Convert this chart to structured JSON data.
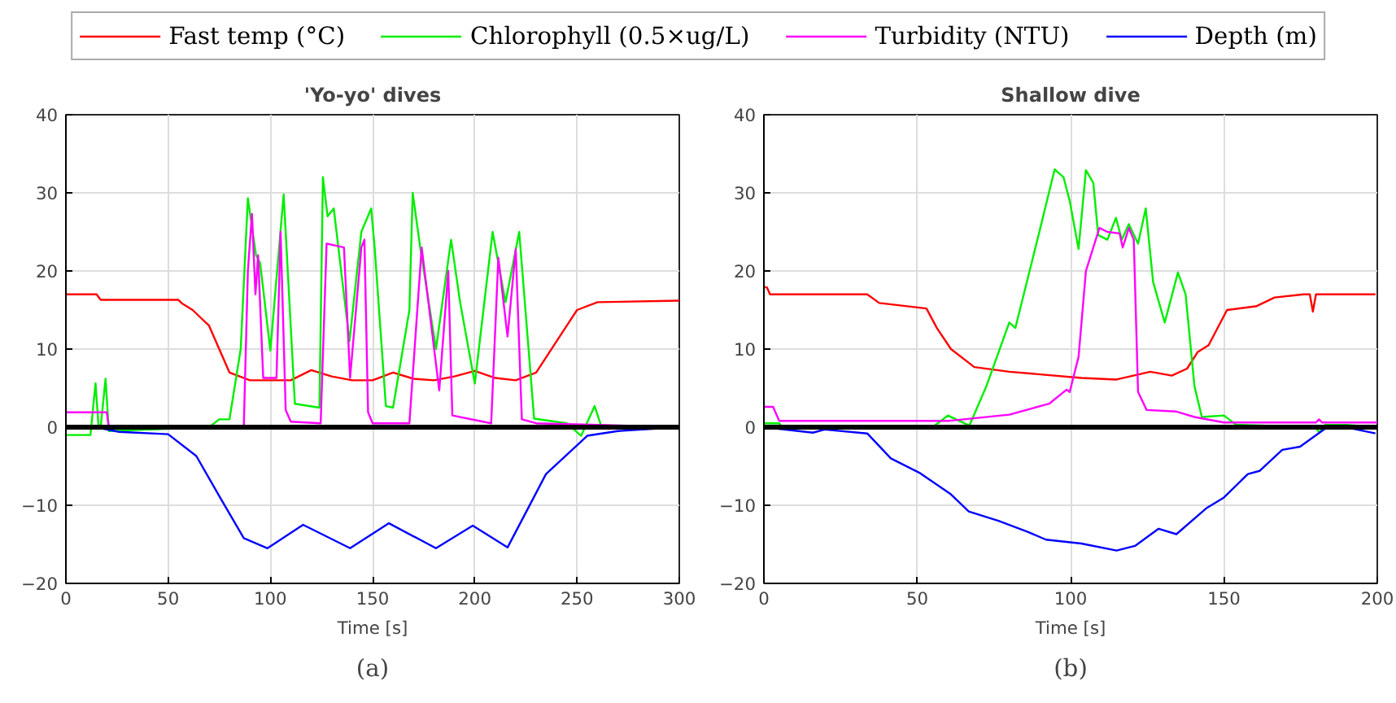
{
  "chart_data": [
    {
      "type": "line",
      "title": "'Yo-yo' dives",
      "xlabel": "Time [s]",
      "xlim": [
        0,
        300
      ],
      "xticks": [
        0,
        50,
        100,
        150,
        200,
        250,
        300
      ],
      "ylim": [
        -20,
        40
      ],
      "yticks": [
        -20,
        -10,
        0,
        10,
        20,
        30,
        40
      ],
      "grid": true,
      "legend": "top",
      "line_style": "solid",
      "annotations": [
        "(a)"
      ],
      "ref_lines": [
        {
          "axis": "y",
          "value": 0,
          "color": "#000000"
        }
      ],
      "series": [
        {
          "name": "Fast temp (°C)",
          "color": "#ff0000",
          "x": [
            0,
            15,
            17,
            55,
            57,
            62,
            70,
            75,
            80,
            85,
            90,
            100,
            110,
            120,
            130,
            140,
            150,
            160,
            170,
            180,
            190,
            200,
            210,
            220,
            230,
            235,
            240,
            245,
            250,
            260,
            300
          ],
          "values": [
            17,
            17,
            16.3,
            16.3,
            15.8,
            15,
            13,
            10,
            7,
            6.5,
            6,
            6,
            6,
            7.3,
            6.5,
            6,
            6,
            7,
            6.2,
            6,
            6.5,
            7.2,
            6.3,
            6,
            7,
            9,
            11,
            13,
            15,
            16,
            16.2
          ]
        },
        {
          "name": "Chlorophyll (0.5×ug/L)",
          "color": "#00ee00",
          "x": [
            0,
            12,
            14.5,
            16,
            17,
            19.4,
            21,
            70,
            75,
            80,
            85.5,
            89,
            93,
            95,
            100,
            106.5,
            112,
            124,
            125.7,
            128,
            131,
            138.7,
            144.5,
            149.3,
            151,
            156.5,
            160,
            168,
            169.6,
            173.3,
            181,
            188.4,
            192.8,
            200,
            208.7,
            215,
            221.7,
            229,
            245,
            252,
            258.6,
            262,
            300
          ],
          "values": [
            -1,
            -1,
            5.6,
            0,
            0,
            6.2,
            -0.5,
            0,
            1,
            1,
            10,
            29.3,
            22,
            21,
            9.8,
            29.8,
            3,
            2.5,
            32,
            27,
            28,
            11,
            25,
            28,
            23,
            2.7,
            2.5,
            15,
            30,
            23,
            10,
            24,
            16,
            5.6,
            25,
            16,
            25,
            1.1,
            0.5,
            -1.1,
            2.7,
            0,
            0
          ]
        },
        {
          "name": "Turbidity (NTU)",
          "color": "#ff00ff",
          "x": [
            0,
            20,
            21,
            87,
            89,
            91,
            92.7,
            94,
            96.5,
            103,
            105,
            107.5,
            110,
            124.6,
            127.5,
            136,
            139,
            144.5,
            146,
            147.8,
            150,
            168,
            174,
            182.6,
            187,
            189,
            208,
            211.5,
            216,
            220,
            223,
            230,
            300
          ],
          "values": [
            1.9,
            1.9,
            0,
            0,
            20,
            27.3,
            17,
            22,
            6.3,
            6.3,
            25,
            2.2,
            0.7,
            0.5,
            23.5,
            23,
            6.3,
            23,
            24,
            1.9,
            0.5,
            0.5,
            23,
            4.7,
            20,
            1.5,
            0.5,
            21.7,
            11.6,
            22.8,
            1,
            0.5,
            0
          ]
        },
        {
          "name": "Depth (m)",
          "color": "#0000ff",
          "x": [
            14.5,
            26,
            50,
            63.8,
            75.4,
            87,
            98.6,
            116,
            139,
            158,
            181,
            199,
            216,
            234.8,
            255,
            270,
            300
          ],
          "values": [
            0,
            -0.6,
            -0.9,
            -3.7,
            -9,
            -14.2,
            -15.5,
            -12.5,
            -15.5,
            -12.3,
            -15.5,
            -12.6,
            -15.4,
            -6,
            -1.1,
            -0.5,
            0
          ]
        }
      ]
    },
    {
      "type": "line",
      "title": "Shallow dive",
      "xlabel": "Time [s]",
      "xlim": [
        0,
        200
      ],
      "xticks": [
        0,
        50,
        100,
        150,
        200
      ],
      "ylim": [
        -20,
        40
      ],
      "yticks": [
        -20,
        -10,
        0,
        10,
        20,
        30,
        40
      ],
      "grid": true,
      "line_style": "solid",
      "annotations": [
        "(b)"
      ],
      "ref_lines": [
        {
          "axis": "y",
          "value": 0,
          "color": "#000000"
        }
      ],
      "series": [
        {
          "color": "#ff0000",
          "x": [
            0,
            1,
            2,
            33.7,
            37.6,
            53,
            56.4,
            61,
            68.6,
            80,
            103.5,
            115,
            126,
            133,
            138,
            141.4,
            145,
            151,
            160.7,
            166.5,
            176,
            178,
            179,
            180,
            181,
            199.4
          ],
          "values": [
            17.9,
            17.9,
            17,
            17,
            15.9,
            15.2,
            12.7,
            10,
            7.7,
            7.1,
            6.3,
            6.1,
            7.1,
            6.6,
            7.5,
            9.6,
            10.5,
            15,
            15.5,
            16.6,
            17,
            17,
            14.8,
            17,
            17,
            17
          ]
        },
        {
          "color": "#00ee00",
          "x": [
            0,
            5,
            6,
            55,
            60,
            67,
            72.5,
            80,
            82,
            90,
            94.8,
            97.7,
            99.7,
            102.6,
            105,
            107.4,
            109,
            112,
            114.8,
            116.7,
            119,
            122,
            124.5,
            126.9,
            130.7,
            135,
            137.5,
            140.4,
            142.8,
            150,
            154,
            180,
            181,
            183,
            190,
            200
          ],
          "values": [
            0.5,
            0.5,
            0,
            0,
            1.5,
            0.2,
            5.2,
            13.4,
            12.7,
            25.3,
            33,
            32,
            29,
            22.8,
            32.9,
            31.3,
            24.6,
            24,
            26.8,
            24,
            26,
            23.5,
            28,
            18.6,
            13.4,
            19.8,
            17,
            5.2,
            1.3,
            1.5,
            0.3,
            0,
            -0.7,
            0.3,
            0.3,
            0
          ]
        },
        {
          "color": "#ff00ff",
          "x": [
            0,
            3,
            5,
            60,
            80,
            93,
            98.7,
            99.7,
            102.6,
            105,
            109.4,
            112,
            116,
            117,
            119,
            120.6,
            122,
            124.8,
            134.5,
            140.4,
            150,
            180,
            181,
            182,
            200
          ],
          "values": [
            2.6,
            2.6,
            0.8,
            0.8,
            1.6,
            3,
            4.8,
            4.5,
            9,
            20,
            25.5,
            25,
            24.8,
            23,
            25.5,
            24,
            4.5,
            2.2,
            2,
            1.3,
            0.6,
            0.6,
            1,
            0.6,
            0.6
          ]
        },
        {
          "color": "#0000ff",
          "x": [
            0,
            16,
            19.8,
            33.7,
            41.4,
            51,
            61,
            66.8,
            76.5,
            86,
            92,
            103.5,
            115,
            121,
            128.7,
            134.5,
            144.2,
            150,
            157.8,
            161.6,
            169,
            174.8,
            184.4,
            192,
            199.4
          ],
          "values": [
            0,
            -0.7,
            -0.3,
            -0.8,
            -4,
            -5.9,
            -8.6,
            -10.8,
            -12,
            -13.4,
            -14.4,
            -14.9,
            -15.8,
            -15.2,
            -13,
            -13.7,
            -10.4,
            -9,
            -6,
            -5.6,
            -2.9,
            -2.5,
            0.2,
            -0.2,
            -0.8
          ]
        }
      ]
    }
  ]
}
